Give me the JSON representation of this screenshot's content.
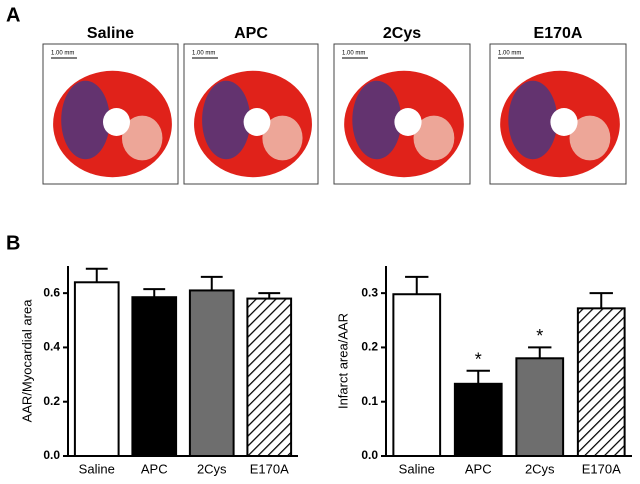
{
  "panels": {
    "a": "A",
    "b": "B"
  },
  "images": [
    {
      "title": "Saline",
      "scale": "1.00 mm"
    },
    {
      "title": "APC",
      "scale": "1.00 mm"
    },
    {
      "title": "2Cys",
      "scale": "1.00 mm"
    },
    {
      "title": "E170A",
      "scale": "1.00 mm"
    }
  ],
  "chart_data": [
    {
      "type": "bar",
      "y_label": "AAR/Myocardial area",
      "categories": [
        "Saline",
        "APC",
        "2Cys",
        "E170A"
      ],
      "values": [
        0.64,
        0.585,
        0.61,
        0.58
      ],
      "errors": [
        0.05,
        0.03,
        0.05,
        0.02
      ],
      "colors": [
        "#ffffff",
        "#000000",
        "#6e6e6e",
        "#ffffff"
      ],
      "hatch": [
        false,
        false,
        false,
        true
      ],
      "ylim": [
        0,
        0.7
      ],
      "yticks": [
        {
          "value": 0,
          "label": "0.0"
        },
        0.2,
        0.4,
        0.6
      ]
    },
    {
      "type": "bar",
      "y_label": "Infarct area/AAR",
      "categories": [
        "Saline",
        "APC",
        "2Cys",
        "E170A"
      ],
      "values": [
        0.298,
        0.133,
        0.18,
        0.272
      ],
      "errors": [
        0.032,
        0.024,
        0.02,
        0.028
      ],
      "colors": [
        "#ffffff",
        "#000000",
        "#6e6e6e",
        "#ffffff"
      ],
      "hatch": [
        false,
        false,
        false,
        true
      ],
      "significance": [
        null,
        "*",
        "*",
        null
      ],
      "ylim": [
        0,
        0.35
      ],
      "yticks": [
        {
          "value": 0,
          "label": "0.0"
        },
        0.1,
        0.2,
        0.3
      ]
    }
  ]
}
